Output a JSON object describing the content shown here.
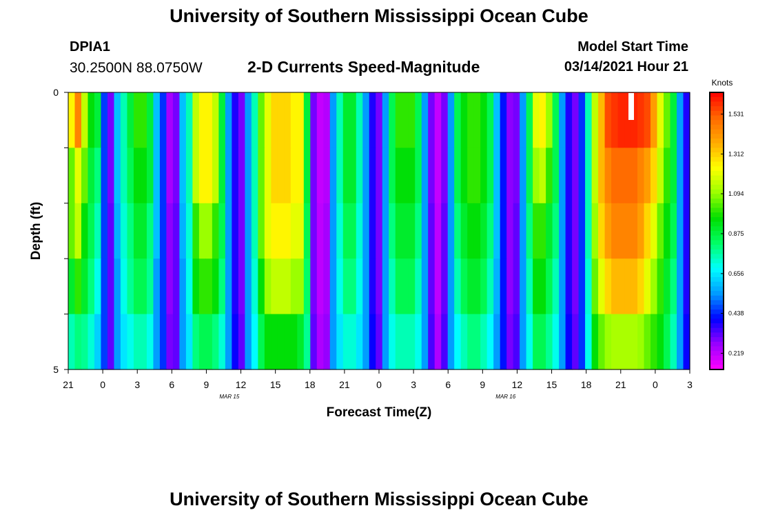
{
  "header": {
    "title": "University of Southern Mississippi Ocean Cube",
    "station_id": "DPIA1",
    "station_coords": "30.2500N 88.0750W",
    "plot_title": "2-D Currents Speed-Magnitude",
    "model_label": "Model Start Time",
    "model_time": "03/14/2021 Hour 21"
  },
  "footer": {
    "title": "University of Southern Mississippi Ocean Cube"
  },
  "chart_data": {
    "type": "heatmap",
    "title": "2-D Currents Speed-Magnitude",
    "xlabel": "Forecast Time(Z)",
    "ylabel": "Depth (ft)",
    "x_hours_from_start": [
      0,
      54
    ],
    "x_tick_labels": [
      "21",
      "0",
      "3",
      "6",
      "9",
      "12",
      "15",
      "18",
      "21",
      "0",
      "3",
      "6",
      "9",
      "12",
      "15",
      "18",
      "21",
      "0",
      "3"
    ],
    "date_labels": [
      {
        "label": "MAR 15",
        "hour": 14
      },
      {
        "label": "MAR 16",
        "hour": 38
      }
    ],
    "y_ticks": [
      "0",
      "5"
    ],
    "ylim": [
      0,
      5
    ],
    "depth_layers": 5,
    "colorbar": {
      "unit": "Knots",
      "ticks": [
        0.219,
        0.438,
        0.656,
        0.875,
        1.094,
        1.312,
        1.531
      ],
      "range": [
        0.13,
        1.65
      ],
      "colors": [
        "#ff00ff",
        "#9900ff",
        "#0000ff",
        "#0099ff",
        "#00ffff",
        "#00ff66",
        "#00dd00",
        "#99ff00",
        "#ffff00",
        "#ffaa00",
        "#ff6600",
        "#ff0000"
      ]
    },
    "series": [
      {
        "name": "layer 0",
        "values": [
          1.25,
          1.45,
          1.15,
          0.95,
          0.88,
          0.46,
          0.3,
          0.6,
          0.75,
          0.88,
          1.0,
          1.0,
          0.88,
          0.6,
          0.45,
          0.25,
          0.3,
          0.6,
          0.75,
          1.15,
          1.25,
          1.25,
          1.15,
          0.88,
          0.55,
          0.38,
          0.3,
          0.55,
          0.75,
          1.05,
          1.2,
          1.3,
          1.3,
          1.3,
          1.25,
          1.25,
          0.88,
          0.3,
          0.21,
          0.23,
          0.55,
          0.75,
          0.9,
          0.9,
          0.75,
          0.55,
          0.38,
          0.3,
          0.55,
          0.85,
          1.0,
          1.0,
          1.0,
          0.85,
          0.55,
          0.3,
          0.21,
          0.3,
          0.55,
          0.85,
          0.95,
          1.0,
          1.0,
          0.95,
          0.85,
          0.6,
          0.42,
          0.28,
          0.3,
          0.55,
          0.85,
          1.2,
          1.25,
          1.1,
          0.85,
          0.55,
          0.38,
          0.3,
          0.45,
          0.75,
          1.15,
          1.35,
          1.55,
          1.58,
          1.6,
          1.6,
          1.6,
          1.58,
          1.55,
          1.4,
          1.2,
          1.05,
          0.88,
          0.55,
          0.38
        ]
      },
      {
        "name": "layer 1",
        "values": [
          1.05,
          1.2,
          1.05,
          0.88,
          0.8,
          0.46,
          0.3,
          0.6,
          0.75,
          0.85,
          0.95,
          0.95,
          0.88,
          0.6,
          0.45,
          0.25,
          0.3,
          0.6,
          0.75,
          1.15,
          1.25,
          1.25,
          1.15,
          0.88,
          0.55,
          0.38,
          0.3,
          0.55,
          0.75,
          1.05,
          1.2,
          1.3,
          1.3,
          1.3,
          1.25,
          1.25,
          0.88,
          0.3,
          0.21,
          0.23,
          0.55,
          0.75,
          0.9,
          0.9,
          0.75,
          0.55,
          0.38,
          0.3,
          0.55,
          0.85,
          0.95,
          0.95,
          0.95,
          0.85,
          0.55,
          0.3,
          0.21,
          0.3,
          0.55,
          0.85,
          0.95,
          1.0,
          1.0,
          0.95,
          0.85,
          0.6,
          0.42,
          0.28,
          0.3,
          0.55,
          0.85,
          1.1,
          1.15,
          1.0,
          0.85,
          0.55,
          0.38,
          0.3,
          0.45,
          0.75,
          1.15,
          1.35,
          1.45,
          1.5,
          1.5,
          1.5,
          1.5,
          1.45,
          1.4,
          1.3,
          1.15,
          1.0,
          0.88,
          0.55,
          0.38
        ]
      },
      {
        "name": "layer 2",
        "values": [
          1.05,
          1.15,
          0.95,
          0.85,
          0.75,
          0.46,
          0.32,
          0.58,
          0.72,
          0.8,
          0.9,
          0.9,
          0.8,
          0.6,
          0.45,
          0.28,
          0.32,
          0.58,
          0.72,
          1.0,
          1.1,
          1.1,
          1.0,
          0.85,
          0.55,
          0.38,
          0.3,
          0.55,
          0.75,
          1.05,
          1.2,
          1.25,
          1.25,
          1.25,
          1.2,
          1.2,
          0.85,
          0.3,
          0.22,
          0.25,
          0.55,
          0.72,
          0.85,
          0.85,
          0.72,
          0.55,
          0.38,
          0.3,
          0.55,
          0.8,
          0.9,
          0.9,
          0.9,
          0.8,
          0.55,
          0.32,
          0.22,
          0.32,
          0.55,
          0.8,
          0.9,
          0.95,
          0.95,
          0.9,
          0.8,
          0.6,
          0.42,
          0.28,
          0.32,
          0.55,
          0.8,
          1.0,
          1.0,
          0.9,
          0.8,
          0.55,
          0.38,
          0.3,
          0.45,
          0.75,
          1.1,
          1.3,
          1.4,
          1.45,
          1.45,
          1.45,
          1.45,
          1.4,
          1.3,
          1.2,
          1.05,
          0.95,
          0.85,
          0.55,
          0.38
        ]
      },
      {
        "name": "layer 3",
        "values": [
          0.9,
          1.0,
          0.9,
          0.8,
          0.7,
          0.46,
          0.32,
          0.55,
          0.7,
          0.78,
          0.85,
          0.85,
          0.78,
          0.55,
          0.45,
          0.28,
          0.32,
          0.55,
          0.7,
          0.95,
          1.0,
          1.0,
          0.95,
          0.8,
          0.55,
          0.38,
          0.3,
          0.55,
          0.72,
          0.95,
          1.1,
          1.15,
          1.15,
          1.15,
          1.1,
          1.1,
          0.82,
          0.3,
          0.22,
          0.25,
          0.55,
          0.7,
          0.8,
          0.8,
          0.7,
          0.55,
          0.38,
          0.3,
          0.55,
          0.75,
          0.85,
          0.85,
          0.85,
          0.75,
          0.55,
          0.32,
          0.22,
          0.32,
          0.55,
          0.75,
          0.85,
          0.9,
          0.9,
          0.85,
          0.75,
          0.58,
          0.42,
          0.28,
          0.32,
          0.55,
          0.75,
          0.95,
          0.95,
          0.85,
          0.75,
          0.55,
          0.38,
          0.3,
          0.45,
          0.72,
          1.05,
          1.2,
          1.3,
          1.35,
          1.35,
          1.35,
          1.35,
          1.3,
          1.2,
          1.1,
          1.0,
          0.9,
          0.8,
          0.55,
          0.38
        ]
      },
      {
        "name": "layer 4",
        "values": [
          0.75,
          0.8,
          0.78,
          0.72,
          0.62,
          0.46,
          0.32,
          0.55,
          0.65,
          0.7,
          0.75,
          0.75,
          0.7,
          0.55,
          0.45,
          0.3,
          0.32,
          0.55,
          0.65,
          0.8,
          0.85,
          0.85,
          0.8,
          0.72,
          0.55,
          0.4,
          0.32,
          0.55,
          0.68,
          0.85,
          0.95,
          0.95,
          0.95,
          0.95,
          0.95,
          0.9,
          0.78,
          0.32,
          0.24,
          0.27,
          0.55,
          0.65,
          0.72,
          0.72,
          0.65,
          0.55,
          0.4,
          0.32,
          0.55,
          0.7,
          0.75,
          0.75,
          0.75,
          0.7,
          0.55,
          0.34,
          0.24,
          0.34,
          0.55,
          0.68,
          0.75,
          0.8,
          0.8,
          0.75,
          0.68,
          0.55,
          0.42,
          0.3,
          0.34,
          0.55,
          0.7,
          0.85,
          0.85,
          0.78,
          0.7,
          0.55,
          0.4,
          0.32,
          0.45,
          0.7,
          0.95,
          1.05,
          1.1,
          1.12,
          1.12,
          1.12,
          1.12,
          1.1,
          1.05,
          1.0,
          0.95,
          0.85,
          0.75,
          0.55,
          0.4
        ]
      }
    ]
  }
}
